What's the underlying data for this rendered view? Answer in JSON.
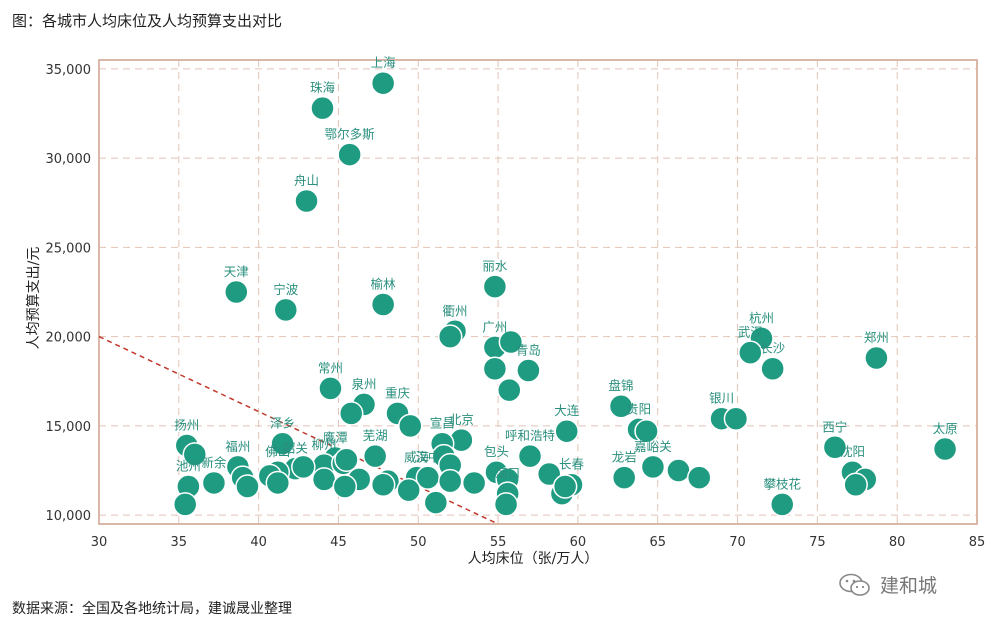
{
  "title": "图：各城市人均床位及人均预算支出对比",
  "source": "数据来源：全国及各地统计局，建诚晟业整理",
  "watermark": "建和城",
  "colors": {
    "point": "#1f9b82",
    "point_stroke": "#ffffff",
    "label": "#2a8f7e",
    "grid": "#e3c4b6",
    "frame": "#d9b8a8",
    "trend": "#c0392b"
  },
  "chart_data": {
    "type": "scatter",
    "xlabel": "人均床位（张/万人）",
    "ylabel": "人均预算支出/元",
    "xlim": [
      30,
      85
    ],
    "ylim": [
      9500,
      35500
    ],
    "xticks": [
      30,
      35,
      40,
      45,
      50,
      55,
      60,
      65,
      70,
      75,
      80,
      85
    ],
    "yticks": [
      10000,
      15000,
      20000,
      25000,
      30000,
      35000
    ],
    "ytick_labels": [
      "10,000",
      "15,000",
      "20,000",
      "25,000",
      "30,000",
      "35,000"
    ],
    "grid": true,
    "trendline": {
      "style": "dashed",
      "x": [
        30,
        55
      ],
      "y": [
        20000,
        9500
      ]
    },
    "points": [
      {
        "name": "上海",
        "x": 47.8,
        "y": 34200
      },
      {
        "name": "珠海",
        "x": 44.0,
        "y": 32800
      },
      {
        "name": "鄂尔多斯",
        "x": 45.7,
        "y": 30200
      },
      {
        "name": "舟山",
        "x": 43.0,
        "y": 27600
      },
      {
        "name": "天津",
        "x": 38.6,
        "y": 22500
      },
      {
        "name": "宁波",
        "x": 41.7,
        "y": 21500
      },
      {
        "name": "榆林",
        "x": 47.8,
        "y": 21800
      },
      {
        "name": "丽水",
        "x": 54.8,
        "y": 22800
      },
      {
        "name": "衢州",
        "x": 52.3,
        "y": 20300
      },
      {
        "name": "",
        "x": 52.0,
        "y": 20000
      },
      {
        "name": "广州",
        "x": 54.8,
        "y": 19400
      },
      {
        "name": "",
        "x": 55.8,
        "y": 19700
      },
      {
        "name": "青岛",
        "x": 56.9,
        "y": 18100
      },
      {
        "name": "",
        "x": 54.8,
        "y": 18200
      },
      {
        "name": "",
        "x": 55.7,
        "y": 17000
      },
      {
        "name": "杭州",
        "x": 71.5,
        "y": 19900
      },
      {
        "name": "武汉",
        "x": 70.8,
        "y": 19100
      },
      {
        "name": "长沙",
        "x": 72.2,
        "y": 18200
      },
      {
        "name": "郑州",
        "x": 78.7,
        "y": 18800
      },
      {
        "name": "常州",
        "x": 44.5,
        "y": 17100
      },
      {
        "name": "泉州",
        "x": 46.6,
        "y": 16200
      },
      {
        "name": "",
        "x": 45.8,
        "y": 15700
      },
      {
        "name": "重庆",
        "x": 48.7,
        "y": 15700
      },
      {
        "name": "",
        "x": 49.5,
        "y": 15000
      },
      {
        "name": "盘锦",
        "x": 62.7,
        "y": 16100
      },
      {
        "name": "贵阳",
        "x": 63.8,
        "y": 14800
      },
      {
        "name": "",
        "x": 64.3,
        "y": 14700
      },
      {
        "name": "银川",
        "x": 69.0,
        "y": 15400
      },
      {
        "name": "",
        "x": 69.9,
        "y": 15400
      },
      {
        "name": "大连",
        "x": 59.3,
        "y": 14700
      },
      {
        "name": "北京",
        "x": 52.7,
        "y": 14200
      },
      {
        "name": "宣昌",
        "x": 51.5,
        "y": 14000
      },
      {
        "name": "呼和浩特",
        "x": 57.0,
        "y": 13300
      },
      {
        "name": "扬州",
        "x": 35.5,
        "y": 13900
      },
      {
        "name": "",
        "x": 36.0,
        "y": 13400
      },
      {
        "name": "泽乡",
        "x": 41.5,
        "y": 14000
      },
      {
        "name": "鹰潭",
        "x": 44.8,
        "y": 13200
      },
      {
        "name": "芜湖",
        "x": 47.3,
        "y": 13300
      },
      {
        "name": "柳州",
        "x": 44.1,
        "y": 12800
      },
      {
        "name": "",
        "x": 45.3,
        "y": 12900
      },
      {
        "name": "",
        "x": 45.5,
        "y": 13100
      },
      {
        "name": "",
        "x": 51.6,
        "y": 13300
      },
      {
        "name": "",
        "x": 52.0,
        "y": 12800
      },
      {
        "name": "韶关",
        "x": 42.3,
        "y": 12600
      },
      {
        "name": "佛山",
        "x": 41.2,
        "y": 12400
      },
      {
        "name": "",
        "x": 42.8,
        "y": 12700
      },
      {
        "name": "",
        "x": 40.7,
        "y": 12200
      },
      {
        "name": "福州",
        "x": 38.7,
        "y": 12700
      },
      {
        "name": "新余",
        "x": 37.2,
        "y": 11800
      },
      {
        "name": "",
        "x": 39.0,
        "y": 12100
      },
      {
        "name": "",
        "x": 39.3,
        "y": 11600
      },
      {
        "name": "池州",
        "x": 35.6,
        "y": 11600
      },
      {
        "name": "",
        "x": 35.4,
        "y": 10600
      },
      {
        "name": "威海",
        "x": 49.9,
        "y": 12100
      },
      {
        "name": "",
        "x": 48.1,
        "y": 11900
      },
      {
        "name": "",
        "x": 46.3,
        "y": 12000
      },
      {
        "name": "",
        "x": 44.1,
        "y": 12000
      },
      {
        "name": "",
        "x": 45.4,
        "y": 11600
      },
      {
        "name": "",
        "x": 41.2,
        "y": 11800
      },
      {
        "name": "",
        "x": 47.8,
        "y": 11700
      },
      {
        "name": "汉中",
        "x": 50.6,
        "y": 12100
      },
      {
        "name": "",
        "x": 52.0,
        "y": 11900
      },
      {
        "name": "",
        "x": 49.4,
        "y": 11400
      },
      {
        "name": "",
        "x": 51.1,
        "y": 10700
      },
      {
        "name": "",
        "x": 53.5,
        "y": 11800
      },
      {
        "name": "包头",
        "x": 54.9,
        "y": 12400
      },
      {
        "name": "",
        "x": 55.6,
        "y": 12000
      },
      {
        "name": "海口",
        "x": 55.6,
        "y": 11200
      },
      {
        "name": "",
        "x": 55.5,
        "y": 10600
      },
      {
        "name": "",
        "x": 58.2,
        "y": 12300
      },
      {
        "name": "长春",
        "x": 59.6,
        "y": 11700
      },
      {
        "name": "",
        "x": 59.0,
        "y": 11200
      },
      {
        "name": "",
        "x": 59.2,
        "y": 11600
      },
      {
        "name": "龙岩",
        "x": 62.9,
        "y": 12100
      },
      {
        "name": "嘉峪关",
        "x": 64.7,
        "y": 12700
      },
      {
        "name": "",
        "x": 66.3,
        "y": 12500
      },
      {
        "name": "",
        "x": 67.6,
        "y": 12100
      },
      {
        "name": "西宁",
        "x": 76.1,
        "y": 13800
      },
      {
        "name": "沈阳",
        "x": 77.2,
        "y": 12400
      },
      {
        "name": "",
        "x": 78.0,
        "y": 12000
      },
      {
        "name": "",
        "x": 77.4,
        "y": 11700
      },
      {
        "name": "太原",
        "x": 83.0,
        "y": 13700
      },
      {
        "name": "攀枝花",
        "x": 72.8,
        "y": 10600
      }
    ]
  }
}
